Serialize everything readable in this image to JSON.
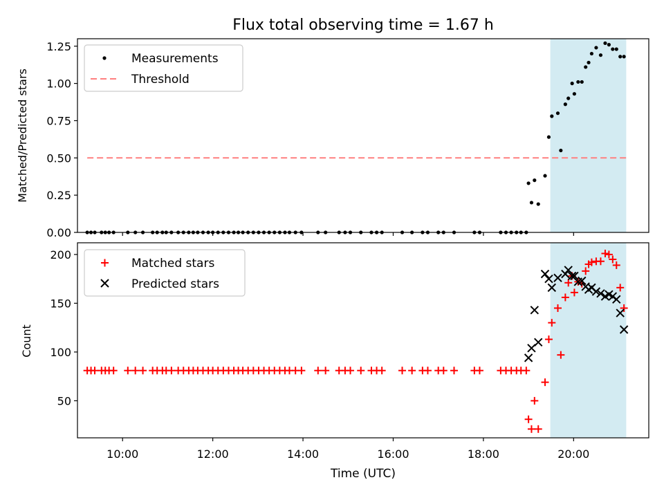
{
  "chart_data": [
    {
      "type": "scatter",
      "title": "Flux total observing time = 1.67 h",
      "xlabel": "",
      "ylabel": "Matched/Predicted stars",
      "xlim": [
        "09:00",
        "21:40"
      ],
      "ylim": [
        0,
        1.3
      ],
      "yticks": [
        "0.00",
        "0.25",
        "0.50",
        "0.75",
        "1.00",
        "1.25"
      ],
      "legend_position": "top-left",
      "grid": false,
      "highlight_span": {
        "start": "19:29",
        "end": "21:10",
        "color": "#d3ebf2"
      },
      "series": [
        {
          "name": "Measurements",
          "marker": "dot",
          "color": "#000000",
          "points": [
            {
              "x": "09:13",
              "y": 0
            },
            {
              "x": "09:18",
              "y": 0
            },
            {
              "x": "09:23",
              "y": 0
            },
            {
              "x": "09:32",
              "y": 0
            },
            {
              "x": "09:37",
              "y": 0
            },
            {
              "x": "09:42",
              "y": 0
            },
            {
              "x": "09:48",
              "y": 0
            },
            {
              "x": "10:07",
              "y": 0
            },
            {
              "x": "10:17",
              "y": 0
            },
            {
              "x": "10:27",
              "y": 0
            },
            {
              "x": "10:40",
              "y": 0
            },
            {
              "x": "10:46",
              "y": 0
            },
            {
              "x": "10:53",
              "y": 0
            },
            {
              "x": "10:58",
              "y": 0
            },
            {
              "x": "11:05",
              "y": 0
            },
            {
              "x": "11:14",
              "y": 0
            },
            {
              "x": "11:21",
              "y": 0
            },
            {
              "x": "11:28",
              "y": 0
            },
            {
              "x": "11:34",
              "y": 0
            },
            {
              "x": "11:40",
              "y": 0
            },
            {
              "x": "11:47",
              "y": 0
            },
            {
              "x": "11:54",
              "y": 0
            },
            {
              "x": "12:00",
              "y": 0
            },
            {
              "x": "12:07",
              "y": 0
            },
            {
              "x": "12:14",
              "y": 0
            },
            {
              "x": "12:21",
              "y": 0
            },
            {
              "x": "12:28",
              "y": 0
            },
            {
              "x": "12:34",
              "y": 0
            },
            {
              "x": "12:40",
              "y": 0
            },
            {
              "x": "12:47",
              "y": 0
            },
            {
              "x": "12:54",
              "y": 0
            },
            {
              "x": "13:01",
              "y": 0
            },
            {
              "x": "13:08",
              "y": 0
            },
            {
              "x": "13:15",
              "y": 0
            },
            {
              "x": "13:22",
              "y": 0
            },
            {
              "x": "13:29",
              "y": 0
            },
            {
              "x": "13:36",
              "y": 0
            },
            {
              "x": "13:42",
              "y": 0
            },
            {
              "x": "13:50",
              "y": 0
            },
            {
              "x": "13:58",
              "y": 0
            },
            {
              "x": "14:20",
              "y": 0
            },
            {
              "x": "14:30",
              "y": 0
            },
            {
              "x": "14:48",
              "y": 0
            },
            {
              "x": "14:56",
              "y": 0
            },
            {
              "x": "15:03",
              "y": 0
            },
            {
              "x": "15:17",
              "y": 0
            },
            {
              "x": "15:31",
              "y": 0
            },
            {
              "x": "15:38",
              "y": 0
            },
            {
              "x": "15:45",
              "y": 0
            },
            {
              "x": "16:12",
              "y": 0
            },
            {
              "x": "16:25",
              "y": 0
            },
            {
              "x": "16:39",
              "y": 0
            },
            {
              "x": "16:46",
              "y": 0
            },
            {
              "x": "17:00",
              "y": 0
            },
            {
              "x": "17:07",
              "y": 0
            },
            {
              "x": "17:21",
              "y": 0
            },
            {
              "x": "17:48",
              "y": 0
            },
            {
              "x": "17:55",
              "y": 0
            },
            {
              "x": "18:23",
              "y": 0
            },
            {
              "x": "18:30",
              "y": 0
            },
            {
              "x": "18:37",
              "y": 0
            },
            {
              "x": "18:44",
              "y": 0
            },
            {
              "x": "18:50",
              "y": 0
            },
            {
              "x": "18:57",
              "y": 0
            },
            {
              "x": "19:00",
              "y": 0.33
            },
            {
              "x": "19:04",
              "y": 0.2
            },
            {
              "x": "19:08",
              "y": 0.35
            },
            {
              "x": "19:13",
              "y": 0.19
            },
            {
              "x": "19:22",
              "y": 0.38
            },
            {
              "x": "19:27",
              "y": 0.64
            },
            {
              "x": "19:31",
              "y": 0.78
            },
            {
              "x": "19:39",
              "y": 0.8
            },
            {
              "x": "19:43",
              "y": 0.55
            },
            {
              "x": "19:49",
              "y": 0.86
            },
            {
              "x": "19:53",
              "y": 0.9
            },
            {
              "x": "19:58",
              "y": 1.0
            },
            {
              "x": "20:01",
              "y": 0.93
            },
            {
              "x": "20:06",
              "y": 1.01
            },
            {
              "x": "20:11",
              "y": 1.01
            },
            {
              "x": "20:16",
              "y": 1.11
            },
            {
              "x": "20:20",
              "y": 1.14
            },
            {
              "x": "20:24",
              "y": 1.2
            },
            {
              "x": "20:30",
              "y": 1.24
            },
            {
              "x": "20:36",
              "y": 1.19
            },
            {
              "x": "20:42",
              "y": 1.27
            },
            {
              "x": "20:47",
              "y": 1.26
            },
            {
              "x": "20:52",
              "y": 1.23
            },
            {
              "x": "20:57",
              "y": 1.23
            },
            {
              "x": "21:02",
              "y": 1.18
            },
            {
              "x": "21:07",
              "y": 1.18
            }
          ]
        },
        {
          "name": "Threshold",
          "line_style": "dashed",
          "color": "#ff7f7f",
          "points": [
            {
              "x": "09:13",
              "y": 0.5
            },
            {
              "x": "21:10",
              "y": 0.5
            }
          ]
        }
      ]
    },
    {
      "type": "scatter",
      "title": "",
      "xlabel": "Time (UTC)",
      "ylabel": "Count",
      "xlim": [
        "09:00",
        "21:40"
      ],
      "ylim": [
        12,
        212
      ],
      "xticks": [
        "10:00",
        "12:00",
        "14:00",
        "16:00",
        "18:00",
        "20:00"
      ],
      "yticks": [
        "50",
        "100",
        "150",
        "200"
      ],
      "legend_position": "top-left",
      "grid": false,
      "highlight_span": {
        "start": "19:29",
        "end": "21:10",
        "color": "#d3ebf2"
      },
      "series": [
        {
          "name": "Matched stars",
          "marker": "plus",
          "color": "#ff0000",
          "points": [
            {
              "x": "09:13",
              "y": 81
            },
            {
              "x": "09:18",
              "y": 81
            },
            {
              "x": "09:23",
              "y": 81
            },
            {
              "x": "09:32",
              "y": 81
            },
            {
              "x": "09:37",
              "y": 81
            },
            {
              "x": "09:42",
              "y": 81
            },
            {
              "x": "09:48",
              "y": 81
            },
            {
              "x": "10:07",
              "y": 81
            },
            {
              "x": "10:17",
              "y": 81
            },
            {
              "x": "10:27",
              "y": 81
            },
            {
              "x": "10:40",
              "y": 81
            },
            {
              "x": "10:46",
              "y": 81
            },
            {
              "x": "10:53",
              "y": 81
            },
            {
              "x": "10:58",
              "y": 81
            },
            {
              "x": "11:05",
              "y": 81
            },
            {
              "x": "11:14",
              "y": 81
            },
            {
              "x": "11:21",
              "y": 81
            },
            {
              "x": "11:28",
              "y": 81
            },
            {
              "x": "11:34",
              "y": 81
            },
            {
              "x": "11:40",
              "y": 81
            },
            {
              "x": "11:47",
              "y": 81
            },
            {
              "x": "11:54",
              "y": 81
            },
            {
              "x": "12:00",
              "y": 81
            },
            {
              "x": "12:07",
              "y": 81
            },
            {
              "x": "12:14",
              "y": 81
            },
            {
              "x": "12:21",
              "y": 81
            },
            {
              "x": "12:28",
              "y": 81
            },
            {
              "x": "12:34",
              "y": 81
            },
            {
              "x": "12:40",
              "y": 81
            },
            {
              "x": "12:47",
              "y": 81
            },
            {
              "x": "12:54",
              "y": 81
            },
            {
              "x": "13:01",
              "y": 81
            },
            {
              "x": "13:08",
              "y": 81
            },
            {
              "x": "13:15",
              "y": 81
            },
            {
              "x": "13:22",
              "y": 81
            },
            {
              "x": "13:29",
              "y": 81
            },
            {
              "x": "13:36",
              "y": 81
            },
            {
              "x": "13:42",
              "y": 81
            },
            {
              "x": "13:50",
              "y": 81
            },
            {
              "x": "13:58",
              "y": 81
            },
            {
              "x": "14:20",
              "y": 81
            },
            {
              "x": "14:30",
              "y": 81
            },
            {
              "x": "14:48",
              "y": 81
            },
            {
              "x": "14:56",
              "y": 81
            },
            {
              "x": "15:03",
              "y": 81
            },
            {
              "x": "15:17",
              "y": 81
            },
            {
              "x": "15:31",
              "y": 81
            },
            {
              "x": "15:38",
              "y": 81
            },
            {
              "x": "15:45",
              "y": 81
            },
            {
              "x": "16:12",
              "y": 81
            },
            {
              "x": "16:25",
              "y": 81
            },
            {
              "x": "16:39",
              "y": 81
            },
            {
              "x": "16:46",
              "y": 81
            },
            {
              "x": "17:00",
              "y": 81
            },
            {
              "x": "17:07",
              "y": 81
            },
            {
              "x": "17:21",
              "y": 81
            },
            {
              "x": "17:48",
              "y": 81
            },
            {
              "x": "17:55",
              "y": 81
            },
            {
              "x": "18:23",
              "y": 81
            },
            {
              "x": "18:30",
              "y": 81
            },
            {
              "x": "18:37",
              "y": 81
            },
            {
              "x": "18:44",
              "y": 81
            },
            {
              "x": "18:50",
              "y": 81
            },
            {
              "x": "18:57",
              "y": 81
            },
            {
              "x": "19:00",
              "y": 31
            },
            {
              "x": "19:04",
              "y": 21
            },
            {
              "x": "19:08",
              "y": 50
            },
            {
              "x": "19:13",
              "y": 21
            },
            {
              "x": "19:22",
              "y": 69
            },
            {
              "x": "19:27",
              "y": 113
            },
            {
              "x": "19:31",
              "y": 130
            },
            {
              "x": "19:39",
              "y": 145
            },
            {
              "x": "19:43",
              "y": 97
            },
            {
              "x": "19:49",
              "y": 156
            },
            {
              "x": "19:53",
              "y": 171
            },
            {
              "x": "19:58",
              "y": 178
            },
            {
              "x": "20:01",
              "y": 161
            },
            {
              "x": "20:06",
              "y": 172
            },
            {
              "x": "20:11",
              "y": 170
            },
            {
              "x": "20:16",
              "y": 183
            },
            {
              "x": "20:20",
              "y": 190
            },
            {
              "x": "20:24",
              "y": 192
            },
            {
              "x": "20:30",
              "y": 193
            },
            {
              "x": "20:36",
              "y": 193
            },
            {
              "x": "20:42",
              "y": 201
            },
            {
              "x": "20:47",
              "y": 200
            },
            {
              "x": "20:52",
              "y": 195
            },
            {
              "x": "20:57",
              "y": 189
            },
            {
              "x": "21:02",
              "y": 166
            },
            {
              "x": "21:07",
              "y": 145
            }
          ]
        },
        {
          "name": "Predicted stars",
          "marker": "x",
          "color": "#000000",
          "points": [
            {
              "x": "19:00",
              "y": 94
            },
            {
              "x": "19:04",
              "y": 104
            },
            {
              "x": "19:08",
              "y": 143
            },
            {
              "x": "19:13",
              "y": 110
            },
            {
              "x": "19:22",
              "y": 180
            },
            {
              "x": "19:27",
              "y": 175
            },
            {
              "x": "19:31",
              "y": 166
            },
            {
              "x": "19:39",
              "y": 176
            },
            {
              "x": "19:49",
              "y": 180
            },
            {
              "x": "19:53",
              "y": 184
            },
            {
              "x": "19:58",
              "y": 178
            },
            {
              "x": "20:01",
              "y": 178
            },
            {
              "x": "20:06",
              "y": 172
            },
            {
              "x": "20:11",
              "y": 173
            },
            {
              "x": "20:16",
              "y": 167
            },
            {
              "x": "20:20",
              "y": 164
            },
            {
              "x": "20:24",
              "y": 166
            },
            {
              "x": "20:30",
              "y": 162
            },
            {
              "x": "20:36",
              "y": 160
            },
            {
              "x": "20:42",
              "y": 157
            },
            {
              "x": "20:47",
              "y": 159
            },
            {
              "x": "20:52",
              "y": 157
            },
            {
              "x": "20:57",
              "y": 154
            },
            {
              "x": "21:02",
              "y": 140
            },
            {
              "x": "21:07",
              "y": 123
            }
          ]
        }
      ]
    }
  ]
}
